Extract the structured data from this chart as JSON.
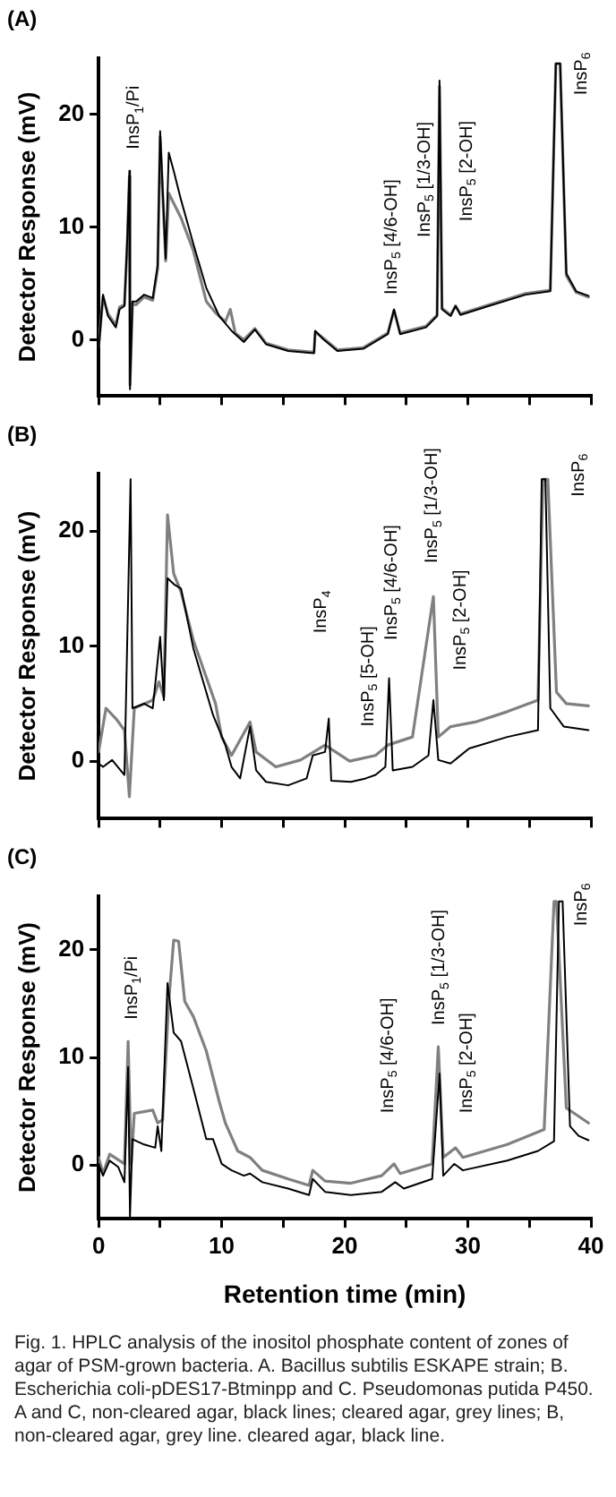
{
  "chart_data": [
    {
      "type": "line",
      "title": "(A)",
      "ylabel": "Detector Response (mV)",
      "xlim": [
        0,
        40
      ],
      "xticks": [
        0,
        {
          "value": 5,
          "label": null
        },
        10,
        {
          "value": 15,
          "label": null
        },
        20,
        {
          "value": 25,
          "label": null
        },
        30,
        {
          "value": 35,
          "label": null
        },
        40
      ],
      "ylim": [
        -5,
        25
      ],
      "yticks": [
        0,
        10,
        20
      ],
      "tick_labels": "y",
      "marker": "none",
      "line_style": "solid",
      "series": [
        {
          "color": "#000000",
          "x": [
            0,
            0.36,
            0.76,
            1.4,
            1.7,
            2.1,
            2.34,
            2.5,
            2.55,
            2.75,
            3.05,
            3.7,
            4.4,
            4.8,
            5.0,
            5.45,
            5.7,
            6.1,
            6.7,
            7.7,
            8.75,
            9.8,
            10.8,
            11.8,
            12.7,
            13.6,
            15.4,
            17.5,
            17.6,
            18.2,
            19.4,
            21.5,
            23.5,
            24.0,
            24.5,
            26.6,
            27.5,
            27.7,
            27.9,
            28.6,
            29.0,
            29.4,
            31.7,
            34.7,
            36.7,
            37.15,
            37.5,
            38.0,
            38.8,
            39.8
          ],
          "values": [
            -1,
            4.0,
            2.1,
            1.1,
            2.7,
            3.0,
            9.2,
            15.0,
            -4.4,
            3.4,
            3.4,
            4.0,
            3.7,
            6.6,
            18.5,
            7.2,
            16.6,
            15,
            12.4,
            8.5,
            4.6,
            2.1,
            0.8,
            -0.2,
            0.9,
            -0.4,
            -1.0,
            -1.2,
            0.8,
            0.1,
            -1.0,
            -0.8,
            0.5,
            2.7,
            0.5,
            1.1,
            2.1,
            23.0,
            2.7,
            2.1,
            3.0,
            2.2,
            3.0,
            4.0,
            4.3,
            24.5,
            24.5,
            5.9,
            4.3,
            3.9
          ]
        },
        {
          "color": "#808080",
          "x": [
            0,
            0.36,
            0.76,
            1.4,
            1.7,
            2.1,
            2.34,
            2.5,
            2.55,
            2.75,
            3.05,
            3.7,
            4.4,
            4.8,
            5.0,
            5.45,
            5.7,
            6.7,
            7.7,
            8.75,
            9.5,
            10.3,
            10.7,
            11.1,
            11.8,
            12.7,
            13.6,
            15.4,
            17.5,
            17.6,
            18.2,
            19.4,
            21.5,
            23.5,
            24.0,
            24.5,
            26.6,
            27.5,
            27.7,
            27.9,
            28.6,
            29.0,
            29.4,
            31.7,
            34.7,
            36.7,
            37.15,
            37.5,
            38.0,
            38.8,
            39.8
          ],
          "values": [
            -0.6,
            3.8,
            2.3,
            1.3,
            2.9,
            3.1,
            8.8,
            14.5,
            -4.0,
            3.2,
            3.1,
            3.8,
            3.5,
            6.3,
            18.0,
            7.0,
            13,
            10.8,
            7.9,
            3.4,
            2.4,
            1.6,
            2.7,
            0.6,
            0.0,
            1.0,
            -0.3,
            -0.9,
            -1.1,
            0.7,
            0.2,
            -0.9,
            -0.7,
            0.6,
            2.6,
            0.6,
            1.2,
            2.2,
            22.5,
            2.8,
            2.2,
            3.0,
            2.3,
            3.1,
            4.1,
            4.4,
            24.5,
            24.5,
            5.7,
            4.2,
            3.8
          ]
        }
      ],
      "annotations": [
        "InsP$_{1}$/Pi",
        "InsP$_{5}$ [4/6-OH]",
        "InsP$_{5}$ [1/3-OH]",
        "InsP$_{5}$ [2-OH]",
        "InsP$_{6}$"
      ]
    },
    {
      "type": "line",
      "title": "(B)",
      "ylabel": "Detector Response (mV)",
      "xlim": [
        0,
        40
      ],
      "xticks": [
        0,
        {
          "value": 5,
          "label": null
        },
        10,
        {
          "value": 15,
          "label": null
        },
        20,
        {
          "value": 25,
          "label": null
        },
        30,
        {
          "value": 35,
          "label": null
        },
        40
      ],
      "ylim": [
        -5,
        25
      ],
      "yticks": [
        0,
        10,
        20
      ],
      "tick_labels": "y",
      "marker": "none",
      "line_style": "solid",
      "series": [
        {
          "color": "#000000",
          "x": [
            0,
            0.36,
            1.1,
            2.1,
            2.6,
            2.75,
            3.7,
            4.4,
            5.0,
            5.3,
            5.6,
            6.2,
            6.7,
            7.7,
            9.3,
            10.3,
            10.8,
            11.5,
            12.3,
            12.8,
            13.6,
            15.4,
            16.9,
            17.4,
            18.4,
            18.7,
            18.9,
            20.5,
            21.7,
            22.5,
            23.3,
            23.6,
            23.9,
            25.5,
            26.8,
            27.2,
            27.6,
            28.6,
            30.1,
            33.2,
            35.7,
            36.0,
            36.3,
            36.7,
            37.8,
            39.8
          ],
          "values": [
            -0.2,
            -0.5,
            0.1,
            -1.2,
            24.5,
            4.6,
            5.0,
            4.6,
            10.8,
            5.3,
            15.9,
            15.3,
            15,
            9.8,
            4.0,
            1.4,
            -0.5,
            -1.5,
            3.0,
            -0.8,
            -1.8,
            -2.1,
            -1.5,
            0.5,
            0.8,
            3.7,
            -1.7,
            -1.8,
            -1.5,
            -1.2,
            -0.5,
            7.2,
            -0.8,
            -0.5,
            0.5,
            5.3,
            0.1,
            -0.2,
            1.1,
            2.1,
            2.7,
            24.5,
            24.5,
            4.6,
            3.0,
            2.7
          ]
        },
        {
          "color": "#808080",
          "x": [
            0,
            0.6,
            1.4,
            2.1,
            2.5,
            2.9,
            4.4,
            4.9,
            5.3,
            5.6,
            6.1,
            6.7,
            7.7,
            9.5,
            10.0,
            10.8,
            12.3,
            12.8,
            14.4,
            16.4,
            18.4,
            20.4,
            22.5,
            23.5,
            25.5,
            27.2,
            27.6,
            28.6,
            30.6,
            33.2,
            35.7,
            36.1,
            36.5,
            37.2,
            38.0,
            39.8
          ],
          "values": [
            0.8,
            4.6,
            3.7,
            2.7,
            -3.1,
            4.6,
            5.3,
            6.9,
            5.6,
            21.4,
            16.3,
            14.7,
            10.5,
            5.0,
            2.1,
            0.5,
            3.4,
            0.8,
            -0.5,
            0.1,
            1.4,
            0,
            0.5,
            1.4,
            2.1,
            14.3,
            2.1,
            3.0,
            3.4,
            4.3,
            5.3,
            24.5,
            24.5,
            6.0,
            5.0,
            4.8
          ]
        }
      ],
      "annotations": [
        "InsP$_{4}$",
        "InsP$_{5}$ [5-OH]",
        "InsP$_{5}$ [4/6-OH]",
        "InsP$_{5}$ [1/3-OH]",
        "InsP$_{5}$ [2-OH]",
        "InsP$_{6}$"
      ]
    },
    {
      "type": "line",
      "title": "(C)",
      "xlabel": "Retention time (min)",
      "ylabel": "Detector Response (mV)",
      "xlim": [
        0,
        40
      ],
      "xticks": [
        0,
        {
          "value": 5,
          "label": null
        },
        10,
        {
          "value": 15,
          "label": null
        },
        20,
        {
          "value": 25,
          "label": null
        },
        30,
        {
          "value": 35,
          "label": null
        },
        40
      ],
      "ylim": [
        -5,
        25
      ],
      "yticks": [
        0,
        10,
        20
      ],
      "marker": "none",
      "line_style": "solid",
      "series": [
        {
          "color": "#000000",
          "x": [
            0,
            0.36,
            0.9,
            1.6,
            2.1,
            2.4,
            2.55,
            2.75,
            3.7,
            4.6,
            4.8,
            5.1,
            5.6,
            6.1,
            6.7,
            7.7,
            8.75,
            9.3,
            10.0,
            10.8,
            11.8,
            12.3,
            13.3,
            15.4,
            17.1,
            17.4,
            18.4,
            20.5,
            23.0,
            24.1,
            24.8,
            27.1,
            27.7,
            28.0,
            28.9,
            29.6,
            33.2,
            35.7,
            37.0,
            37.4,
            37.7,
            38.3,
            39.0,
            39.8
          ],
          "values": [
            0.1,
            -1.0,
            0.4,
            -0.2,
            -1.6,
            9.1,
            -4.8,
            2.4,
            1.9,
            1.6,
            3.6,
            1.3,
            16.9,
            12.3,
            11.5,
            7.1,
            2.4,
            2.4,
            0.1,
            -0.5,
            -1.0,
            -0.8,
            -1.6,
            -2.2,
            -2.8,
            -1.3,
            -2.5,
            -2.8,
            -2.5,
            -1.6,
            -2.2,
            -1.3,
            8.5,
            -1.0,
            0.1,
            -0.5,
            0.4,
            1.3,
            2.2,
            24.5,
            24.5,
            3.6,
            2.7,
            2.3
          ]
        },
        {
          "color": "#808080",
          "x": [
            0,
            0.36,
            0.9,
            2.1,
            2.4,
            2.65,
            2.9,
            4.4,
            4.8,
            5.2,
            5.7,
            6.1,
            6.5,
            7.0,
            7.7,
            8.75,
            9.8,
            10.3,
            11.3,
            12.3,
            13.3,
            15.4,
            17.1,
            17.4,
            18.4,
            20.5,
            23.0,
            24.0,
            24.5,
            27.1,
            27.6,
            28.0,
            29.0,
            29.6,
            33.2,
            36.2,
            37.0,
            37.2,
            38.0,
            39.8
          ],
          "values": [
            0.7,
            -0.8,
            1.0,
            0.1,
            11.5,
            0.1,
            4.8,
            5.1,
            3.9,
            4.2,
            15.2,
            20.9,
            20.8,
            15.2,
            13.8,
            10.6,
            5.9,
            3.9,
            1.3,
            0.7,
            -0.5,
            -1.3,
            -1.9,
            -0.5,
            -1.5,
            -1.7,
            -1.0,
            0.1,
            -0.8,
            0.1,
            11.0,
            0.7,
            1.6,
            0.7,
            1.9,
            3.3,
            24.5,
            24.5,
            5.3,
            3.9
          ]
        }
      ],
      "annotations": [
        "InsP$_{1}$/Pi",
        "InsP$_{5}$ [4/6-OH]",
        "InsP$_{5}$ [1/3-OH]",
        "InsP$_{5}$ [2-OH]",
        "InsP$_{6}$",
        "Fig. 1. HPLC analysis of the inositol phosphate content of zones of agar of PSM-grown bacteria. A. Bacillus subtilis ESKAPE strain; B. Escherichia coli-pDES17-Btminpp and C. Pseudomonas putida P450. A and C, non-cleared agar, black lines; cleared agar, grey lines; B, non-cleared agar, grey line. cleared agar, black line."
      ]
    }
  ]
}
